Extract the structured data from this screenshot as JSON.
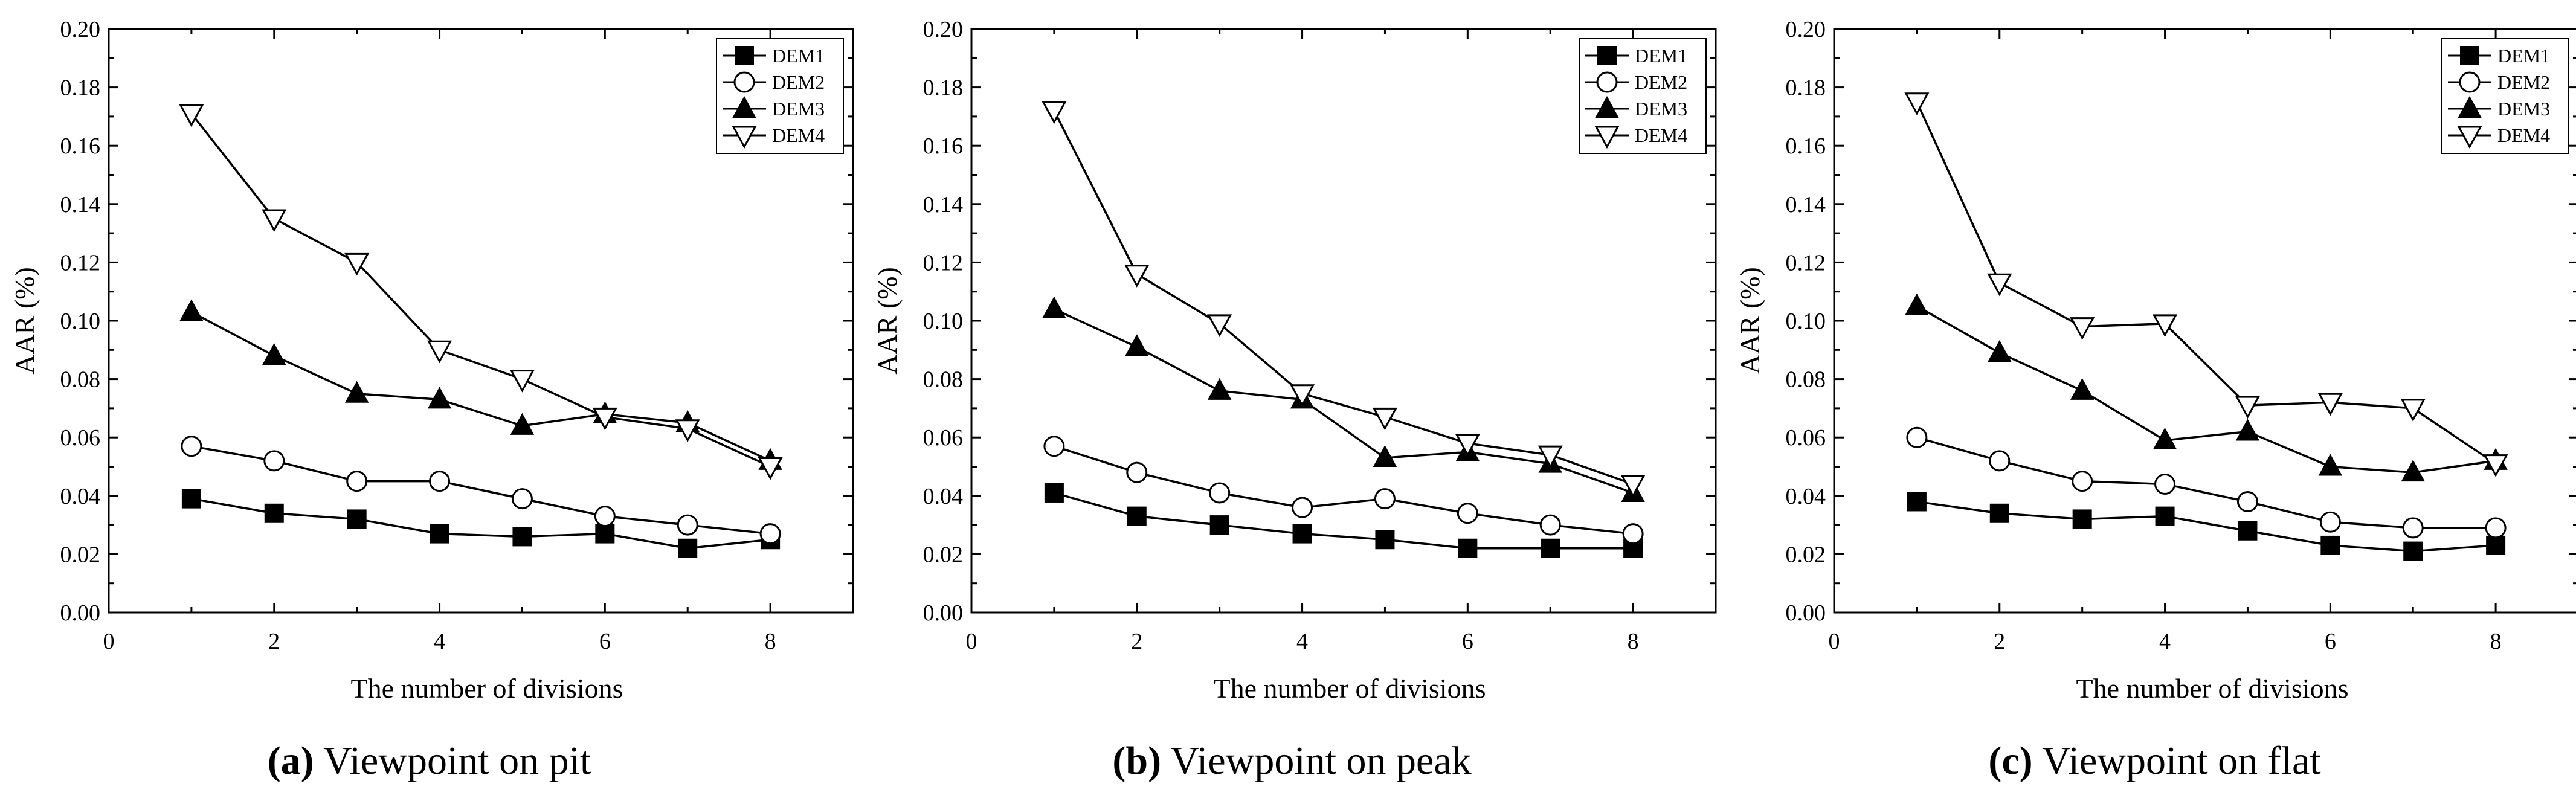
{
  "figure": {
    "panels": [
      {
        "letter": "a",
        "caption": "Viewpoint on pit"
      },
      {
        "letter": "b",
        "caption": "Viewpoint on peak"
      },
      {
        "letter": "c",
        "caption": "Viewpoint on flat"
      }
    ]
  },
  "chart_data": [
    {
      "type": "line",
      "title": "(a) Viewpoint on pit",
      "xlabel": "The number of divisions",
      "ylabel": "AAR (%)",
      "xlim": [
        0,
        9
      ],
      "ylim": [
        0,
        0.2
      ],
      "xticks": [
        "0",
        "2",
        "4",
        "6",
        "8"
      ],
      "yticks": [
        "0.00",
        "0.02",
        "0.04",
        "0.06",
        "0.08",
        "0.10",
        "0.12",
        "0.14",
        "0.16",
        "0.18",
        "0.20"
      ],
      "legend_position": "top-right",
      "x": [
        1,
        2,
        3,
        4,
        5,
        6,
        7,
        8
      ],
      "series": [
        {
          "name": "DEM1",
          "marker": "square-filled",
          "values": [
            0.039,
            0.034,
            0.032,
            0.027,
            0.026,
            0.027,
            0.022,
            0.025
          ]
        },
        {
          "name": "DEM2",
          "marker": "circle-open",
          "values": [
            0.057,
            0.052,
            0.045,
            0.045,
            0.039,
            0.033,
            0.03,
            0.027
          ]
        },
        {
          "name": "DEM3",
          "marker": "triangle-up-filled",
          "values": [
            0.103,
            0.088,
            0.075,
            0.073,
            0.064,
            0.068,
            0.065,
            0.052
          ]
        },
        {
          "name": "DEM4",
          "marker": "triangle-down-open",
          "values": [
            0.171,
            0.135,
            0.12,
            0.09,
            0.08,
            0.067,
            0.063,
            0.05
          ]
        }
      ]
    },
    {
      "type": "line",
      "title": "(b) Viewpoint on peak",
      "xlabel": "The number of divisions",
      "ylabel": "AAR (%)",
      "xlim": [
        0,
        9
      ],
      "ylim": [
        0,
        0.2
      ],
      "xticks": [
        "0",
        "2",
        "4",
        "6",
        "8"
      ],
      "yticks": [
        "0.00",
        "0.02",
        "0.04",
        "0.06",
        "0.08",
        "0.10",
        "0.12",
        "0.14",
        "0.16",
        "0.18",
        "0.20"
      ],
      "legend_position": "top-right",
      "x": [
        1,
        2,
        3,
        4,
        5,
        6,
        7,
        8
      ],
      "series": [
        {
          "name": "DEM1",
          "marker": "square-filled",
          "values": [
            0.041,
            0.033,
            0.03,
            0.027,
            0.025,
            0.022,
            0.022,
            0.022
          ]
        },
        {
          "name": "DEM2",
          "marker": "circle-open",
          "values": [
            0.057,
            0.048,
            0.041,
            0.036,
            0.039,
            0.034,
            0.03,
            0.027
          ]
        },
        {
          "name": "DEM3",
          "marker": "triangle-up-filled",
          "values": [
            0.104,
            0.091,
            0.076,
            0.073,
            0.053,
            0.055,
            0.051,
            0.041
          ]
        },
        {
          "name": "DEM4",
          "marker": "triangle-down-open",
          "values": [
            0.172,
            0.116,
            0.099,
            0.075,
            0.067,
            0.058,
            0.054,
            0.044
          ]
        }
      ]
    },
    {
      "type": "line",
      "title": "(c) Viewpoint on flat",
      "xlabel": "The number of divisions",
      "ylabel": "AAR (%)",
      "xlim": [
        0,
        9
      ],
      "ylim": [
        0,
        0.2
      ],
      "xticks": [
        "0",
        "2",
        "4",
        "6",
        "8"
      ],
      "yticks": [
        "0.00",
        "0.02",
        "0.04",
        "0.06",
        "0.08",
        "0.10",
        "0.12",
        "0.14",
        "0.16",
        "0.18",
        "0.20"
      ],
      "legend_position": "top-right",
      "x": [
        1,
        2,
        3,
        4,
        5,
        6,
        7,
        8
      ],
      "series": [
        {
          "name": "DEM1",
          "marker": "square-filled",
          "values": [
            0.038,
            0.034,
            0.032,
            0.033,
            0.028,
            0.023,
            0.021,
            0.023
          ]
        },
        {
          "name": "DEM2",
          "marker": "circle-open",
          "values": [
            0.06,
            0.052,
            0.045,
            0.044,
            0.038,
            0.031,
            0.029,
            0.029
          ]
        },
        {
          "name": "DEM3",
          "marker": "triangle-up-filled",
          "values": [
            0.105,
            0.089,
            0.076,
            0.059,
            0.062,
            0.05,
            0.048,
            0.052
          ]
        },
        {
          "name": "DEM4",
          "marker": "triangle-down-open",
          "values": [
            0.175,
            0.113,
            0.098,
            0.099,
            0.071,
            0.072,
            0.07,
            0.051
          ]
        }
      ]
    }
  ]
}
